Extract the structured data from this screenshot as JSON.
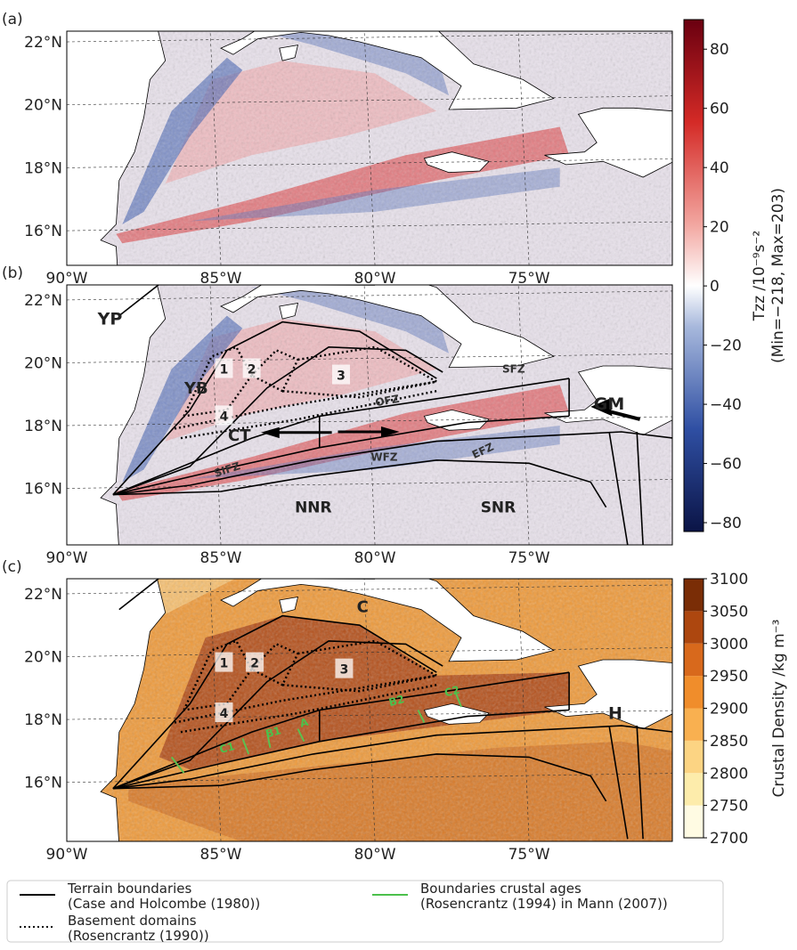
{
  "panels": [
    {
      "label": "(a)",
      "xlim": [
        -90,
        -70.35
      ],
      "ylim": [
        14.9,
        22.34
      ],
      "xticks": [
        {
          "value": -90,
          "label": "90°W"
        },
        {
          "value": -85,
          "label": "85°W"
        },
        {
          "value": -80,
          "label": "80°W"
        },
        {
          "value": -75,
          "label": "75°W"
        }
      ],
      "yticks": [
        {
          "value": 16,
          "label": "16°N"
        },
        {
          "value": 18,
          "label": "18°N"
        },
        {
          "value": 20,
          "label": "20°N"
        },
        {
          "value": 22,
          "label": "22°N"
        }
      ],
      "annotations": []
    },
    {
      "label": "(b)",
      "xlim": [
        -90,
        -70.35
      ],
      "ylim": [
        14.2,
        22.48
      ],
      "xticks": [
        {
          "value": -90,
          "label": "90°W"
        },
        {
          "value": -85,
          "label": "85°W"
        },
        {
          "value": -80,
          "label": "80°W"
        },
        {
          "value": -75,
          "label": "75°W"
        }
      ],
      "yticks": [
        {
          "value": 16,
          "label": "16°N"
        },
        {
          "value": 18,
          "label": "18°N"
        },
        {
          "value": 20,
          "label": "20°N"
        },
        {
          "value": 22,
          "label": "22°N"
        }
      ],
      "annotations": [
        "YP",
        "YB",
        "CT",
        "SIFZ",
        "NNR",
        "WFZ",
        "EFZ",
        "SNR",
        "SFZ",
        "OFZ",
        "GM",
        "1",
        "2",
        "3",
        "4"
      ]
    },
    {
      "label": "(c)",
      "xlim": [
        -90,
        -70.35
      ],
      "ylim": [
        14.12,
        22.48
      ],
      "xticks": [
        {
          "value": -90,
          "label": "90°W"
        },
        {
          "value": -85,
          "label": "85°W"
        },
        {
          "value": -80,
          "label": "80°W"
        },
        {
          "value": -75,
          "label": "75°W"
        }
      ],
      "yticks": [
        {
          "value": 16,
          "label": "16°N"
        },
        {
          "value": 18,
          "label": "18°N"
        },
        {
          "value": 20,
          "label": "20°N"
        },
        {
          "value": 22,
          "label": "22°N"
        }
      ],
      "annotations": [
        "C",
        "H",
        "1",
        "2",
        "3",
        "4",
        "C1",
        "B1",
        "A",
        "B2",
        "C2"
      ]
    }
  ],
  "colorbars": [
    {
      "label": "Tzz /10⁻⁹s⁻²",
      "sublabel": "(Min=−218, Max=203)",
      "lim": [
        -83,
        90
      ],
      "ticks": [
        {
          "value": -80,
          "label": "−80"
        },
        {
          "value": -60,
          "label": "−60"
        },
        {
          "value": -40,
          "label": "−40"
        },
        {
          "value": -20,
          "label": "−20"
        },
        0,
        20,
        40,
        60,
        80
      ]
    },
    {
      "label": "Crustal Density /kg m⁻³",
      "lim": [
        2700,
        3100
      ],
      "ticks": [
        2700,
        2750,
        2800,
        2850,
        2900,
        2950,
        3000,
        3050,
        3100
      ]
    }
  ],
  "legend": [
    {
      "lines": [
        "Terrain boundaries",
        "(Case and Holcombe (1980))"
      ]
    },
    {
      "lines": [
        "Boundaries crustal ages",
        "(Rosencrantz (1994) in Mann (2007))"
      ]
    },
    {
      "lines": [
        "Basement domains",
        "(Rosencrantz (1990))"
      ]
    }
  ]
}
